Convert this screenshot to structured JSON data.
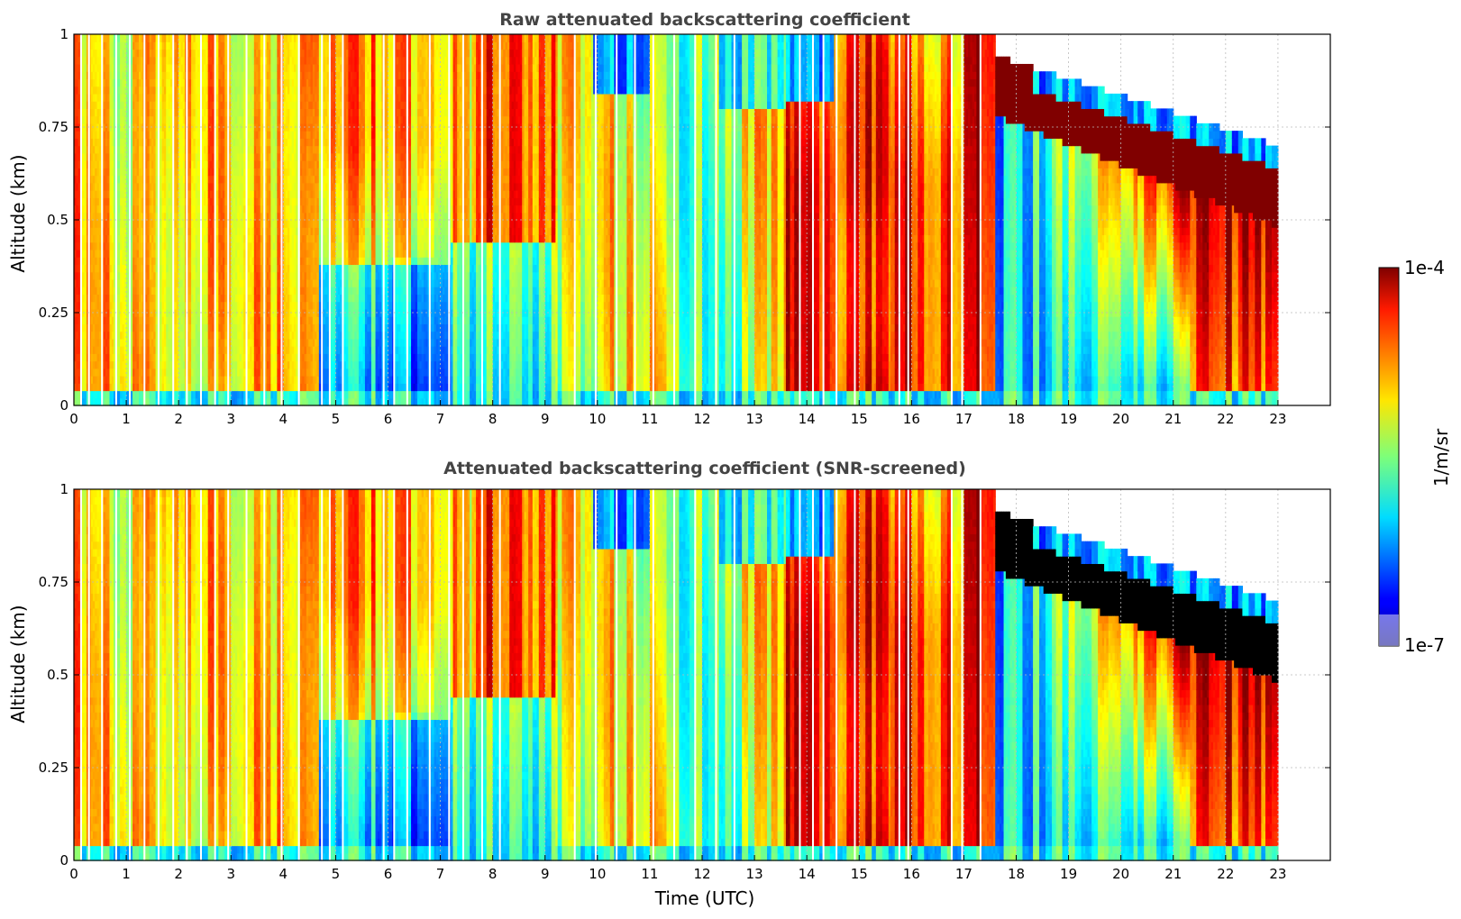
{
  "colorbar": {
    "max_label": "1e-4",
    "min_label": "1e-7",
    "unit_label": "1/m/sr",
    "range": [
      1e-07,
      0.0001
    ],
    "scale": "log",
    "colormap": "jet",
    "low_color": "#e6e6fa"
  },
  "chart_data": [
    {
      "type": "heatmap",
      "title": "Raw attenuated backscattering coefficient",
      "xlabel": "",
      "ylabel": "Altitude (km)",
      "xlim": [
        0,
        24
      ],
      "ylim": [
        0,
        1
      ],
      "xticks": [
        "0",
        "1",
        "2",
        "3",
        "4",
        "5",
        "6",
        "7",
        "8",
        "9",
        "10",
        "11",
        "12",
        "13",
        "14",
        "15",
        "16",
        "17",
        "18",
        "19",
        "20",
        "21",
        "22",
        "23"
      ],
      "yticks": [
        "0",
        "0.25",
        "0.5",
        "0.75",
        "1"
      ],
      "grid": true,
      "data_end_hour": 23,
      "saturation_color": "#800000"
    },
    {
      "type": "heatmap",
      "title": "Attenuated backscattering coefficient (SNR-screened)",
      "xlabel": "Time (UTC)",
      "ylabel": "Altitude (km)",
      "xlim": [
        0,
        24
      ],
      "ylim": [
        0,
        1
      ],
      "xticks": [
        "0",
        "1",
        "2",
        "3",
        "4",
        "5",
        "6",
        "7",
        "8",
        "9",
        "10",
        "11",
        "12",
        "13",
        "14",
        "15",
        "16",
        "17",
        "18",
        "19",
        "20",
        "21",
        "22",
        "23"
      ],
      "yticks": [
        "0",
        "0.25",
        "0.5",
        "0.75",
        "1"
      ],
      "grid": true,
      "data_end_hour": 23,
      "saturation_color": "#000000"
    }
  ]
}
